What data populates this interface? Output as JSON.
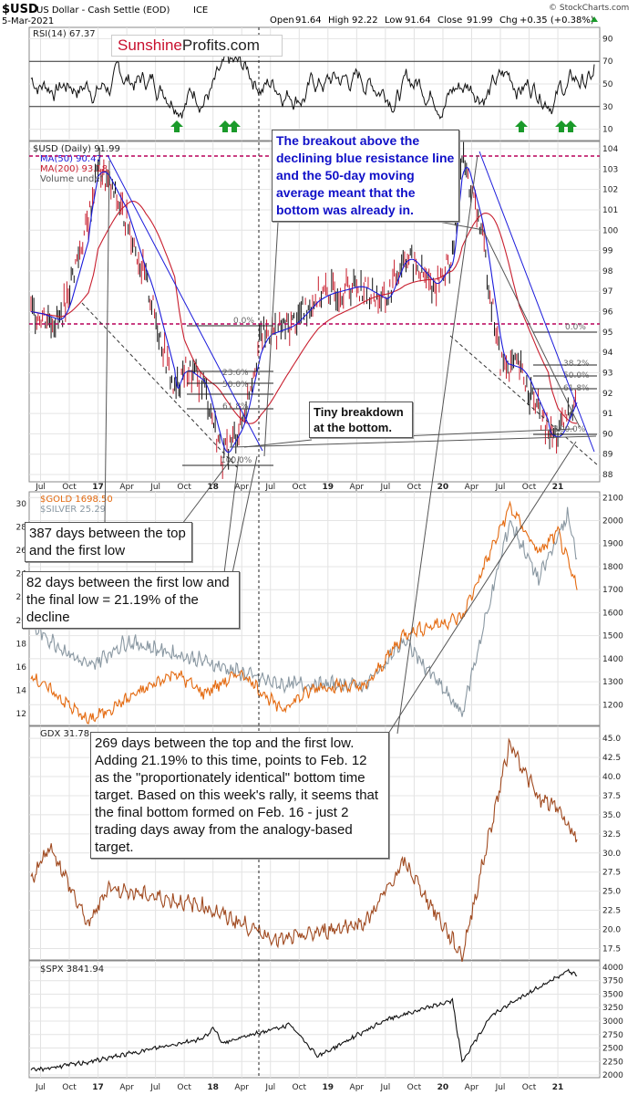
{
  "header": {
    "symbol": "$USD",
    "name": "US Dollar - Cash Settle (EOD)",
    "exchange": "ICE",
    "date": "5-Mar-2021",
    "open_label": "Open",
    "open": "91.64",
    "high_label": "High",
    "high": "92.22",
    "low_label": "Low",
    "low": "91.64",
    "close_label": "Close",
    "close": "91.99",
    "chg_label": "Chg",
    "chg": "+0.35 (+0.38%)",
    "credit": "© StockCharts.com"
  },
  "logo": {
    "part1": "Sunshine",
    "part2": "Profits.com"
  },
  "colors": {
    "usd_bars": "#111111",
    "ma50": "#1a1adb",
    "ma200": "#c81e2e",
    "gold": "#e46a10",
    "silver": "#8a98a2",
    "gdx": "#a04a20",
    "spx": "#111111",
    "annotation_blue": "#1010c8",
    "arrow_green": "#1a9a2a",
    "level_dashed": "#b8005a"
  },
  "x_axis_labels": [
    "Jul",
    "Oct",
    "17",
    "Apr",
    "Jul",
    "Oct",
    "18",
    "Apr",
    "Jul",
    "Oct",
    "19",
    "Apr",
    "Jul",
    "Oct",
    "20",
    "Apr",
    "Jul",
    "Oct",
    "21"
  ],
  "fib_labels": [
    "0.0%",
    "23.6%",
    "38.2%",
    "50.0%",
    "61.8%",
    "100.0%"
  ],
  "annotations": {
    "breakout": "The breakout above the declining blue resistance line and the 50-day moving average meant that the bottom was already in.",
    "tiny": "Tiny breakdown at the bottom.",
    "days387": "387 days between the top and the first low",
    "days82": "82 days between the first low and the final low = 21.19% of the decline",
    "days269": "269 days between the top and the first low. Adding 21.19% to this time, points to Feb. 12 as the \"proportionately identical\" bottom time target. Based on this week's rally, it seems that the final bottom formed on Feb. 16 - just 2 trading days away from the analogy-based target."
  },
  "chart_data": [
    {
      "type": "line",
      "title": "RSI(14) 67.37",
      "series": [
        {
          "name": "RSI(14)",
          "last": 67.37
        }
      ],
      "y_ticks": [
        10,
        30,
        50,
        70,
        90
      ],
      "ylim": [
        0,
        100
      ],
      "reference_lines": [
        30,
        70
      ]
    },
    {
      "type": "line",
      "title": "$USD (Daily) 91.99",
      "legend": [
        "MA(50) 90.47",
        "MA(200) 93.18",
        "Volume undef"
      ],
      "y_ticks": [
        88,
        89,
        90,
        91,
        92,
        93,
        94,
        95,
        96,
        97,
        98,
        99,
        100,
        101,
        102,
        103,
        104
      ],
      "ylim": [
        88,
        104
      ],
      "series": [
        {
          "name": "$USD (Daily)",
          "x": [
            "2016-06",
            "2016-09",
            "2016-12",
            "2017-01",
            "2017-04",
            "2017-06",
            "2017-09",
            "2017-10",
            "2017-12",
            "2018-02",
            "2018-04",
            "2018-06",
            "2018-09",
            "2018-12",
            "2019-04",
            "2019-07",
            "2019-09",
            "2019-12",
            "2020-02",
            "2020-03",
            "2020-05",
            "2020-07",
            "2020-09",
            "2020-12",
            "2021-01",
            "2021-03"
          ],
          "values": [
            96.0,
            95.5,
            100.5,
            103.2,
            100.5,
            97.5,
            92.0,
            93.2,
            92.5,
            88.8,
            90.5,
            94.8,
            95.3,
            96.8,
            97.3,
            96.5,
            98.8,
            97.2,
            98.6,
            103.6,
            100.0,
            93.5,
            93.2,
            90.0,
            89.8,
            91.99
          ]
        },
        {
          "name": "MA(50)",
          "last": 90.47
        },
        {
          "name": "MA(200)",
          "last": 93.18
        }
      ],
      "levels": [
        103.7,
        95.1
      ]
    },
    {
      "type": "line",
      "title": "$GOLD 1698.50",
      "legend": [
        "$GOLD 1698.50",
        "$SILVER 25.29"
      ],
      "y_ticks_right": [
        1200,
        1300,
        1400,
        1500,
        1600,
        1700,
        1800,
        1900,
        2000,
        2100
      ],
      "y_ticks_left": [
        12,
        14,
        16,
        18,
        20,
        22,
        24,
        26,
        28,
        30
      ],
      "series": [
        {
          "name": "$GOLD",
          "x": [
            "2016-06",
            "2016-12",
            "2017-09",
            "2017-12",
            "2018-04",
            "2018-08",
            "2018-12",
            "2019-05",
            "2019-09",
            "2020-03",
            "2020-08",
            "2020-11",
            "2021-01",
            "2021-03"
          ],
          "values": [
            1330,
            1130,
            1340,
            1250,
            1340,
            1180,
            1280,
            1280,
            1510,
            1580,
            2060,
            1860,
            1950,
            1698.5
          ]
        },
        {
          "name": "$SILVER",
          "x": [
            "2016-06",
            "2016-12",
            "2017-04",
            "2017-12",
            "2018-08",
            "2019-05",
            "2019-09",
            "2020-03",
            "2020-08",
            "2020-11",
            "2021-02",
            "2021-03"
          ],
          "values": [
            19.5,
            16.0,
            18.2,
            16.5,
            14.5,
            14.5,
            18.3,
            12.0,
            28.5,
            23.5,
            29.0,
            25.29
          ]
        }
      ]
    },
    {
      "type": "line",
      "title": "GDX 31.78",
      "y_ticks": [
        17.5,
        20.0,
        22.5,
        25.0,
        27.5,
        30.0,
        32.5,
        35.0,
        37.5,
        40.0,
        42.5,
        45.0
      ],
      "series": [
        {
          "name": "GDX",
          "x": [
            "2016-06",
            "2016-08",
            "2016-12",
            "2017-02",
            "2017-12",
            "2018-08",
            "2019-05",
            "2019-09",
            "2020-03",
            "2020-08",
            "2020-11",
            "2021-01",
            "2021-03"
          ],
          "values": [
            26.5,
            31.0,
            20.5,
            25.5,
            23.0,
            18.5,
            21.0,
            28.8,
            16.5,
            44.5,
            37.0,
            36.0,
            31.78
          ]
        }
      ]
    },
    {
      "type": "line",
      "title": "$SPX 3841.94",
      "y_ticks": [
        2000,
        2250,
        2500,
        2750,
        3000,
        3250,
        3500,
        3750,
        4000
      ],
      "series": [
        {
          "name": "$SPX",
          "x": [
            "2016-06",
            "2016-12",
            "2017-12",
            "2018-01",
            "2018-02",
            "2018-09",
            "2018-12",
            "2019-07",
            "2020-02",
            "2020-03",
            "2020-06",
            "2020-09",
            "2021-02",
            "2021-03"
          ],
          "values": [
            2080,
            2240,
            2680,
            2870,
            2600,
            2930,
            2350,
            3020,
            3380,
            2240,
            3100,
            3420,
            3930,
            3841.94
          ]
        }
      ]
    }
  ]
}
